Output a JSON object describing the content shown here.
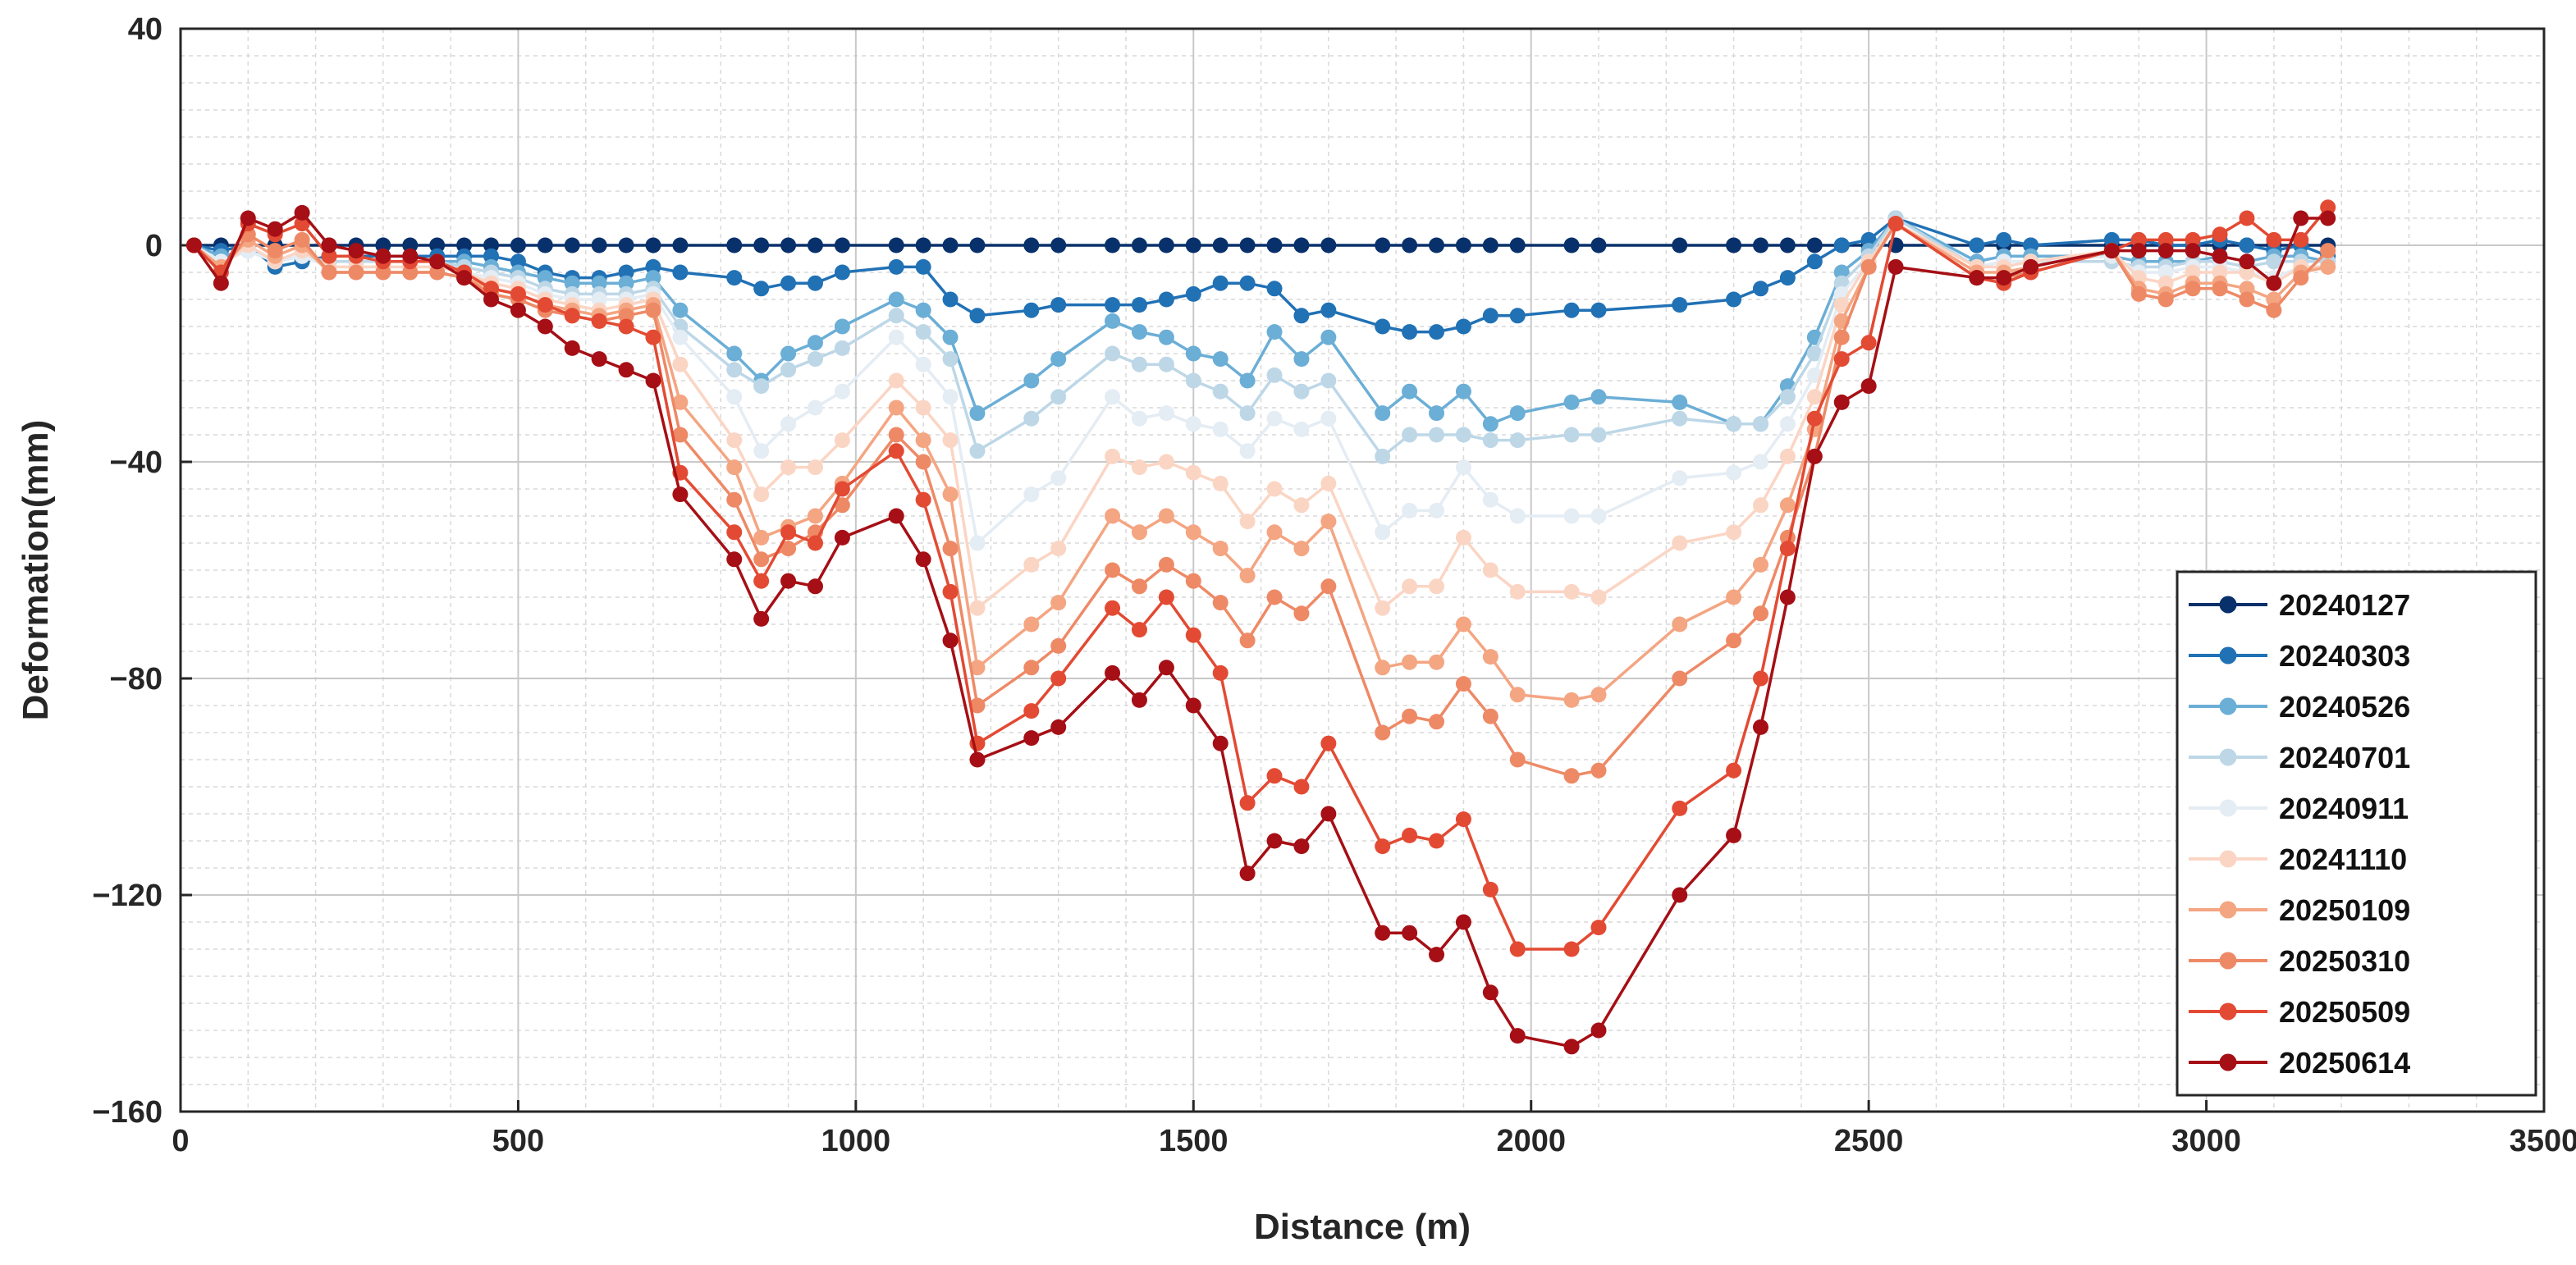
{
  "chart_data": {
    "type": "line",
    "title": "",
    "xlabel": "Distance (m)",
    "ylabel": "Deformation(mm)",
    "xlim": [
      0,
      3500
    ],
    "ylim": [
      -160,
      40
    ],
    "xticks": [
      0,
      500,
      1000,
      1500,
      2000,
      2500,
      3000,
      3500
    ],
    "yticks": [
      -160,
      -120,
      -80,
      -40,
      0,
      40
    ],
    "xtick_labels": [
      "0",
      "500",
      "1000",
      "1500",
      "2000",
      "2500",
      "3000",
      "3500"
    ],
    "ytick_labels": [
      "−160",
      "−120",
      "−80",
      "−40",
      "0",
      "40"
    ],
    "grid": true,
    "legend_position": "bottom-right",
    "x": [
      20,
      60,
      100,
      140,
      180,
      220,
      260,
      300,
      340,
      380,
      420,
      460,
      500,
      540,
      580,
      620,
      660,
      700,
      740,
      820,
      860,
      900,
      940,
      980,
      1060,
      1100,
      1140,
      1180,
      1260,
      1300,
      1380,
      1420,
      1460,
      1500,
      1540,
      1580,
      1620,
      1660,
      1700,
      1780,
      1820,
      1860,
      1900,
      1940,
      1980,
      2060,
      2100,
      2220,
      2300,
      2340,
      2380,
      2420,
      2460,
      2500,
      2540,
      2660,
      2700,
      2740,
      2860,
      2900,
      2940,
      2980,
      3020,
      3060,
      3100,
      3140,
      3180
    ],
    "series": [
      {
        "name": "20240127",
        "color": "#08306b",
        "values": [
          0,
          0,
          0,
          0,
          0,
          0,
          0,
          0,
          0,
          0,
          0,
          0,
          0,
          0,
          0,
          0,
          0,
          0,
          0,
          0,
          0,
          0,
          0,
          0,
          0,
          0,
          0,
          0,
          0,
          0,
          0,
          0,
          0,
          0,
          0,
          0,
          0,
          0,
          0,
          0,
          0,
          0,
          0,
          0,
          0,
          0,
          0,
          0,
          0,
          0,
          0,
          0,
          0,
          0,
          0,
          0,
          0,
          0,
          0,
          0,
          0,
          0,
          0,
          0,
          0,
          0,
          0
        ]
      },
      {
        "name": "20240303",
        "color": "#2171b5",
        "values": [
          0,
          -1,
          0,
          -4,
          -3,
          -2,
          -2,
          -2,
          -2,
          -2,
          -2,
          -2,
          -3,
          -5,
          -6,
          -6,
          -5,
          -4,
          -5,
          -6,
          -8,
          -7,
          -7,
          -5,
          -4,
          -4,
          -10,
          -13,
          -12,
          -11,
          -11,
          -11,
          -10,
          -9,
          -7,
          -7,
          -8,
          -13,
          -12,
          -15,
          -16,
          -16,
          -15,
          -13,
          -13,
          -12,
          -12,
          -11,
          -10,
          -8,
          -6,
          -3,
          0,
          1,
          5,
          0,
          1,
          0,
          1,
          1,
          0,
          0,
          1,
          0,
          -1,
          0,
          -2
        ]
      },
      {
        "name": "20240526",
        "color": "#6baed6",
        "values": [
          0,
          -2,
          -1,
          -3,
          -2,
          -3,
          -3,
          -3,
          -3,
          -3,
          -3,
          -4,
          -5,
          -6,
          -7,
          -7,
          -7,
          -6,
          -12,
          -20,
          -25,
          -20,
          -18,
          -15,
          -10,
          -12,
          -17,
          -31,
          -25,
          -21,
          -14,
          -16,
          -17,
          -20,
          -21,
          -25,
          -16,
          -21,
          -17,
          -31,
          -27,
          -31,
          -27,
          -33,
          -31,
          -29,
          -28,
          -29,
          -33,
          -33,
          -26,
          -17,
          -5,
          -1,
          5,
          -3,
          -2,
          -2,
          -2,
          -3,
          -3,
          -3,
          -2,
          -3,
          -2,
          -2,
          -3
        ]
      },
      {
        "name": "20240701",
        "color": "#bdd7e7",
        "values": [
          0,
          -3,
          -1,
          -3,
          -2,
          -3,
          -3,
          -3,
          -3,
          -3,
          -4,
          -5,
          -6,
          -8,
          -9,
          -9,
          -9,
          -8,
          -15,
          -23,
          -26,
          -23,
          -21,
          -19,
          -13,
          -16,
          -21,
          -38,
          -32,
          -28,
          -20,
          -22,
          -22,
          -25,
          -27,
          -31,
          -24,
          -27,
          -25,
          -39,
          -35,
          -35,
          -35,
          -36,
          -36,
          -35,
          -35,
          -32,
          -33,
          -33,
          -28,
          -20,
          -7,
          -2,
          5,
          -4,
          -3,
          -3,
          -3,
          -4,
          -4,
          -3,
          -3,
          -4,
          -3,
          -3,
          -3
        ]
      },
      {
        "name": "20240911",
        "color": "#e4ecf4",
        "values": [
          0,
          -3,
          -1,
          -3,
          -2,
          -4,
          -4,
          -4,
          -4,
          -4,
          -5,
          -6,
          -7,
          -9,
          -10,
          -10,
          -10,
          -9,
          -17,
          -28,
          -38,
          -33,
          -30,
          -27,
          -17,
          -22,
          -28,
          -55,
          -46,
          -43,
          -28,
          -32,
          -31,
          -33,
          -34,
          -38,
          -32,
          -34,
          -32,
          -53,
          -49,
          -49,
          -41,
          -47,
          -50,
          -50,
          -50,
          -43,
          -42,
          -40,
          -33,
          -24,
          -9,
          -3,
          4,
          -4,
          -3,
          -3,
          -2,
          -5,
          -5,
          -4,
          -4,
          -5,
          -6,
          -4,
          -4
        ]
      },
      {
        "name": "20241110",
        "color": "#fbd5c4",
        "values": [
          0,
          -4,
          0,
          -3,
          -1,
          -4,
          -4,
          -4,
          -4,
          -4,
          -5,
          -7,
          -8,
          -10,
          -11,
          -12,
          -11,
          -10,
          -22,
          -36,
          -46,
          -41,
          -41,
          -36,
          -25,
          -30,
          -36,
          -67,
          -59,
          -56,
          -39,
          -41,
          -40,
          -42,
          -44,
          -51,
          -45,
          -48,
          -44,
          -67,
          -63,
          -63,
          -54,
          -60,
          -64,
          -64,
          -65,
          -55,
          -53,
          -48,
          -39,
          -28,
          -11,
          -3,
          4,
          -4,
          -4,
          -3,
          -1,
          -6,
          -7,
          -5,
          -5,
          -5,
          -7,
          -4,
          -4
        ]
      },
      {
        "name": "20250109",
        "color": "#f4a582",
        "values": [
          0,
          -4,
          1,
          -2,
          0,
          -5,
          -5,
          -5,
          -5,
          -5,
          -6,
          -8,
          -9,
          -11,
          -12,
          -13,
          -12,
          -11,
          -29,
          -41,
          -54,
          -52,
          -50,
          -44,
          -30,
          -36,
          -46,
          -78,
          -70,
          -66,
          -50,
          -53,
          -50,
          -53,
          -56,
          -61,
          -53,
          -56,
          -51,
          -78,
          -77,
          -77,
          -70,
          -76,
          -83,
          -84,
          -83,
          -70,
          -65,
          -59,
          -48,
          -34,
          -14,
          -4,
          4,
          -5,
          -5,
          -4,
          -1,
          -8,
          -9,
          -7,
          -7,
          -8,
          -10,
          -5,
          -4
        ]
      },
      {
        "name": "20250310",
        "color": "#ee8966",
        "values": [
          0,
          -5,
          2,
          -1,
          1,
          -5,
          -5,
          -5,
          -5,
          -5,
          -6,
          -9,
          -10,
          -12,
          -13,
          -14,
          -13,
          -12,
          -35,
          -47,
          -58,
          -56,
          -53,
          -48,
          -35,
          -40,
          -56,
          -85,
          -78,
          -74,
          -60,
          -63,
          -59,
          -62,
          -66,
          -73,
          -65,
          -68,
          -63,
          -90,
          -87,
          -88,
          -81,
          -87,
          -95,
          -98,
          -97,
          -80,
          -73,
          -68,
          -54,
          -39,
          -17,
          -4,
          4,
          -6,
          -6,
          -5,
          -1,
          -9,
          -10,
          -8,
          -8,
          -10,
          -12,
          -6,
          -1
        ]
      },
      {
        "name": "20250509",
        "color": "#e34a33",
        "values": [
          0,
          -5,
          4,
          2,
          4,
          -2,
          -2,
          -3,
          -3,
          -3,
          -5,
          -8,
          -9,
          -11,
          -13,
          -14,
          -15,
          -17,
          -42,
          -53,
          -62,
          -53,
          -55,
          -45,
          -38,
          -47,
          -64,
          -92,
          -86,
          -80,
          -67,
          -71,
          -65,
          -72,
          -79,
          -103,
          -98,
          -100,
          -92,
          -111,
          -109,
          -110,
          -106,
          -119,
          -130,
          -130,
          -126,
          -104,
          -97,
          -80,
          -56,
          -32,
          -21,
          -18,
          4,
          -6,
          -7,
          -5,
          -1,
          1,
          1,
          1,
          2,
          5,
          1,
          1,
          7
        ]
      },
      {
        "name": "20250614",
        "color": "#a50f15",
        "values": [
          0,
          -7,
          5,
          3,
          6,
          0,
          -1,
          -2,
          -2,
          -3,
          -6,
          -10,
          -12,
          -15,
          -19,
          -21,
          -23,
          -25,
          -46,
          -58,
          -69,
          -62,
          -63,
          -54,
          -50,
          -58,
          -73,
          -95,
          -91,
          -89,
          -79,
          -84,
          -78,
          -85,
          -92,
          -116,
          -110,
          -111,
          -105,
          -127,
          -127,
          -131,
          -125,
          -138,
          -146,
          -148,
          -145,
          -120,
          -109,
          -89,
          -65,
          -39,
          -29,
          -26,
          -4,
          -6,
          -6,
          -4,
          -1,
          -1,
          -1,
          -1,
          -2,
          -3,
          -7,
          5,
          5
        ]
      }
    ]
  }
}
